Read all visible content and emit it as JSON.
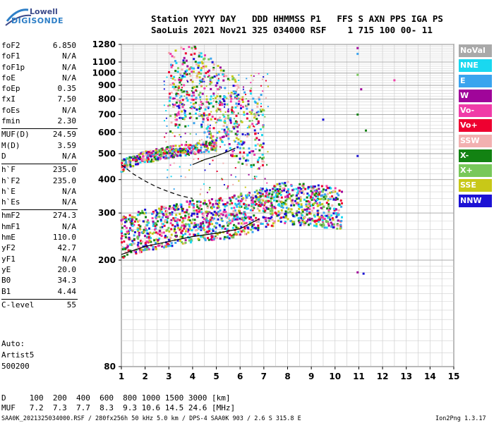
{
  "logo": {
    "line1": "Lowell",
    "line2": "DIGISONDE"
  },
  "header": {
    "line1": "Station YYYY DAY   DDD HHMMSS P1   FFS S AXN PPS IGA PS",
    "line2": "SaoLuis 2021 Nov21 325 034000 RSF    1 715 100 00- 11"
  },
  "params": {
    "group1": [
      {
        "name": "foF2",
        "value": "6.850"
      },
      {
        "name": "foF1",
        "value": "N/A"
      },
      {
        "name": "foF1p",
        "value": "N/A"
      },
      {
        "name": "foE",
        "value": "N/A"
      },
      {
        "name": "foEp",
        "value": "0.35"
      },
      {
        "name": "fxI",
        "value": "7.50"
      },
      {
        "name": "foEs",
        "value": "N/A"
      },
      {
        "name": "fmin",
        "value": "2.30"
      }
    ],
    "group2": [
      {
        "name": "MUF(D)",
        "value": "24.59"
      },
      {
        "name": "M(D)",
        "value": "3.59"
      },
      {
        "name": "D",
        "value": "N/A"
      }
    ],
    "group3": [
      {
        "name": "h`F",
        "value": "235.0"
      },
      {
        "name": "h`F2",
        "value": "235.0"
      },
      {
        "name": "h`E",
        "value": "N/A"
      },
      {
        "name": "h`Es",
        "value": "N/A"
      }
    ],
    "group4": [
      {
        "name": "hmF2",
        "value": "274.3"
      },
      {
        "name": "hmF1",
        "value": "N/A"
      },
      {
        "name": "hmE",
        "value": "110.0"
      },
      {
        "name": "yF2",
        "value": "42.7"
      },
      {
        "name": "yF1",
        "value": "N/A"
      },
      {
        "name": "yE",
        "value": "20.0"
      },
      {
        "name": "B0",
        "value": "34.3"
      },
      {
        "name": "B1",
        "value": "4.44"
      }
    ],
    "group5": [
      {
        "name": "C-level",
        "value": "55"
      }
    ],
    "autoscaling": {
      "line1": "Auto:",
      "line2": "Artist5",
      "line3": "500200"
    }
  },
  "legend": [
    {
      "label": "NoVal",
      "color": "#a9a9a9"
    },
    {
      "label": "NNE",
      "color": "#19d8f0"
    },
    {
      "label": "E",
      "color": "#3aa4ee"
    },
    {
      "label": "W",
      "color": "#a0059a"
    },
    {
      "label": "Vo-",
      "color": "#f03ca8"
    },
    {
      "label": "Vo+",
      "color": "#ee0030"
    },
    {
      "label": "SSW",
      "color": "#f2b0b0"
    },
    {
      "label": "X-",
      "color": "#128212"
    },
    {
      "label": "X+",
      "color": "#78c85a"
    },
    {
      "label": "SSE",
      "color": "#c8c818"
    },
    {
      "label": "NNW",
      "color": "#1c12d4"
    }
  ],
  "muf_table": {
    "d_row": "D     100  200  400  600  800 1000 1500 3000 [km]",
    "muf_row": "MUF   7.2  7.3  7.7  8.3  9.3 10.6 14.5 24.6 [MHz]"
  },
  "footer": {
    "left": "SAA0K_2021325034000.RSF / 280fx256h 50 kHz 5.0 km / DPS-4 SAA0K 903 / 2.6 S 315.8 E",
    "right": "Ion2Png 1.3.17"
  },
  "chart_data": {
    "type": "scatter",
    "xlabel": "",
    "ylabel": "",
    "xlim": [
      1,
      15
    ],
    "ylim": [
      80,
      1280
    ],
    "x_ticks": [
      1,
      2,
      3,
      4,
      5,
      6,
      7,
      8,
      9,
      10,
      11,
      12,
      13,
      14,
      15
    ],
    "y_ticks": [
      80,
      200,
      300,
      400,
      500,
      600,
      700,
      800,
      900,
      1000,
      1100,
      1280
    ],
    "y_scale": "log",
    "grid": true,
    "traces": [
      {
        "name": "F2 trace",
        "color_class": "mixed",
        "points": [
          [
            1.0,
            225
          ],
          [
            1.5,
            232
          ],
          [
            2.0,
            240
          ],
          [
            2.5,
            245
          ],
          [
            3.0,
            250
          ],
          [
            3.5,
            255
          ],
          [
            4.0,
            260
          ],
          [
            4.5,
            262
          ],
          [
            5.0,
            265
          ],
          [
            5.5,
            268
          ],
          [
            6.0,
            275
          ],
          [
            6.5,
            282
          ],
          [
            7.0,
            292
          ],
          [
            7.5,
            300
          ],
          [
            8.0,
            305
          ],
          [
            8.5,
            300
          ],
          [
            9.0,
            298
          ],
          [
            9.5,
            295
          ],
          [
            10.0,
            292
          ],
          [
            10.3,
            290
          ]
        ]
      },
      {
        "name": "F2 second hop",
        "color_class": "mixed",
        "points": [
          [
            1.0,
            440
          ],
          [
            1.5,
            460
          ],
          [
            2.0,
            475
          ],
          [
            2.5,
            485
          ],
          [
            3.0,
            495
          ],
          [
            3.5,
            505
          ],
          [
            4.0,
            510
          ],
          [
            4.5,
            515
          ],
          [
            5.0,
            525
          ]
        ]
      },
      {
        "name": "upper scatter",
        "color_class": "mixed",
        "points": [
          [
            3.0,
            730
          ],
          [
            3.5,
            760
          ],
          [
            4.0,
            800
          ],
          [
            4.5,
            720
          ],
          [
            5.0,
            680
          ],
          [
            5.5,
            620
          ],
          [
            6.0,
            560
          ],
          [
            7.0,
            520
          ]
        ]
      }
    ],
    "profile_lines": [
      {
        "name": "dashed",
        "style": "dashed",
        "points": [
          [
            1.0,
            455
          ],
          [
            1.5,
            420
          ],
          [
            2.0,
            395
          ],
          [
            2.5,
            375
          ],
          [
            3.0,
            360
          ],
          [
            3.5,
            348
          ],
          [
            4.0,
            340
          ]
        ]
      },
      {
        "name": "solid-left",
        "style": "solid",
        "points": [
          [
            1.0,
            210
          ],
          [
            2.0,
            225
          ],
          [
            3.0,
            235
          ],
          [
            4.0,
            245
          ],
          [
            5.0,
            252
          ],
          [
            6.0,
            262
          ],
          [
            6.8,
            285
          ]
        ]
      },
      {
        "name": "solid-upper",
        "style": "solid",
        "points": [
          [
            4.0,
            455
          ],
          [
            4.5,
            475
          ],
          [
            5.0,
            490
          ],
          [
            5.5,
            510
          ],
          [
            5.8,
            525
          ]
        ]
      }
    ],
    "isolated_points": [
      {
        "x": 10.95,
        "y": 1240,
        "color": "#a0059a"
      },
      {
        "x": 10.95,
        "y": 1180,
        "color": "#3aa4ee"
      },
      {
        "x": 10.95,
        "y": 985,
        "color": "#78c85a"
      },
      {
        "x": 11.1,
        "y": 870,
        "color": "#a0059a"
      },
      {
        "x": 12.5,
        "y": 940,
        "color": "#f03ca8"
      },
      {
        "x": 10.95,
        "y": 700,
        "color": "#128212"
      },
      {
        "x": 11.3,
        "y": 610,
        "color": "#128212"
      },
      {
        "x": 10.95,
        "y": 490,
        "color": "#1c12d4"
      },
      {
        "x": 10.95,
        "y": 180,
        "color": "#a0059a"
      },
      {
        "x": 11.2,
        "y": 178,
        "color": "#1c12d4"
      },
      {
        "x": 9.5,
        "y": 670,
        "color": "#1c12d4"
      }
    ]
  }
}
